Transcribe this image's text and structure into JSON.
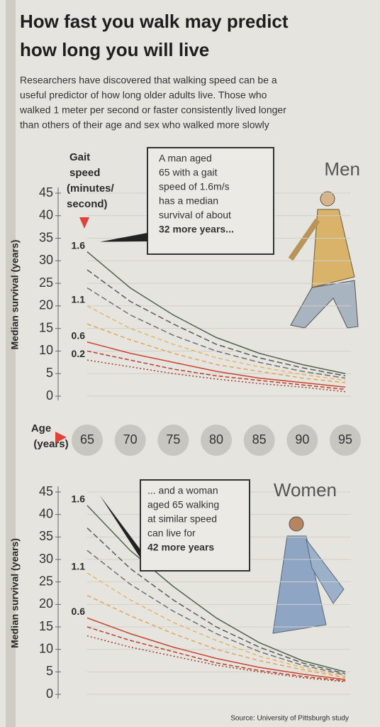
{
  "title_lines": [
    "How fast you walk may predict",
    "how long you will live"
  ],
  "subtitle_lines": [
    "Researchers have discovered that walking speed can be a",
    "useful predictor of how long older adults live. Those who",
    "walked 1 meter per second or faster consistently lived longer",
    "than others of their age and sex who walked more slowly"
  ],
  "source": "Source: University of Pittsburgh study",
  "chart_data": [
    {
      "type": "line",
      "title": "Men",
      "y_label": "Median survival (years)",
      "legend_title_lines": [
        "Gait",
        "speed",
        "(minutes/",
        "second)"
      ],
      "x_label_lines": [
        "Age",
        "(years)"
      ],
      "x": [
        65,
        70,
        75,
        80,
        85,
        90,
        95
      ],
      "xlim": [
        65,
        95
      ],
      "ylim": [
        0,
        45
      ],
      "yticks": [
        0,
        5,
        10,
        15,
        20,
        25,
        30,
        35,
        40,
        45
      ],
      "grid": true,
      "annotation_lines": [
        "A man aged",
        "65 with a gait",
        "speed of 1.6m/s",
        "has a median",
        "survival of about"
      ],
      "annotation_bold": "32 more years...",
      "series": [
        {
          "name": "1.6",
          "color": "#4f6550",
          "values": [
            32,
            24,
            18,
            13,
            9.5,
            7,
            5
          ]
        },
        {
          "color": "#5a5a5a",
          "values": [
            28,
            21,
            16,
            11.5,
            8.5,
            6.3,
            4.5
          ]
        },
        {
          "color": "#707070",
          "values": [
            24,
            18,
            13.5,
            10,
            7.5,
            5.5,
            4
          ]
        },
        {
          "name": "1.1",
          "color": "#e3b768",
          "values": [
            20,
            15,
            11.5,
            8.5,
            6.5,
            4.8,
            3.5
          ]
        },
        {
          "color": "#e2a45a",
          "values": [
            16,
            12.5,
            9.5,
            7,
            5.5,
            4,
            3
          ]
        },
        {
          "name": "0.6",
          "color": "#c8452f",
          "values": [
            12,
            9.5,
            7.5,
            5.5,
            4,
            3,
            2
          ]
        },
        {
          "color": "#b8402e",
          "values": [
            10,
            8,
            6,
            4.5,
            3.5,
            2.5,
            1.5
          ]
        },
        {
          "name": "0.2",
          "color": "#a33a2a",
          "values": [
            8,
            6.5,
            5,
            3.8,
            2.8,
            2,
            1
          ]
        }
      ]
    },
    {
      "type": "line",
      "title": "Women",
      "y_label": "Median survival (years)",
      "x": [
        65,
        70,
        75,
        80,
        85,
        90,
        95
      ],
      "xlim": [
        65,
        95
      ],
      "ylim": [
        0,
        45
      ],
      "yticks": [
        0,
        5,
        10,
        15,
        20,
        25,
        30,
        35,
        40,
        45
      ],
      "grid": true,
      "annotation_lines": [
        "... and a woman",
        "aged 65 walking",
        "at similar speed",
        "can live for"
      ],
      "annotation_bold": "42 more years",
      "series": [
        {
          "name": "1.6",
          "color": "#4f6550",
          "values": [
            42,
            32,
            24,
            17,
            11.5,
            7.5,
            5
          ]
        },
        {
          "color": "#5a5a5a",
          "values": [
            37,
            28,
            21,
            15,
            10.5,
            7,
            4.6
          ]
        },
        {
          "color": "#707070",
          "values": [
            32,
            24.5,
            18.5,
            13.5,
            9.5,
            6.5,
            4.3
          ]
        },
        {
          "name": "1.1",
          "color": "#e3b768",
          "values": [
            27,
            21,
            16,
            12,
            8.5,
            6,
            4
          ]
        },
        {
          "color": "#e2a45a",
          "values": [
            22,
            17.5,
            13.5,
            10,
            7.5,
            5.5,
            3.7
          ]
        },
        {
          "name": "0.6",
          "color": "#c8452f",
          "values": [
            17,
            13.5,
            10.5,
            8,
            6,
            4.5,
            3.3
          ]
        },
        {
          "color": "#b8402e",
          "values": [
            15,
            12,
            9.5,
            7,
            5.3,
            4,
            3
          ]
        },
        {
          "color": "#a33a2a",
          "values": [
            13,
            10.5,
            8.5,
            6.5,
            5,
            3.7,
            2.8
          ]
        }
      ]
    }
  ]
}
